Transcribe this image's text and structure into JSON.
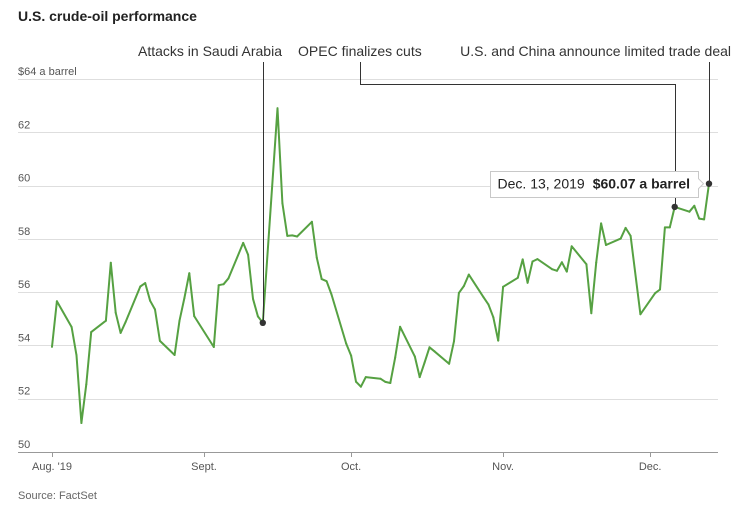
{
  "chart_data": {
    "type": "line",
    "title": "U.S. crude-oil performance",
    "x": [
      0,
      1,
      4,
      5,
      6,
      7,
      8,
      11,
      12,
      13,
      14,
      15,
      18,
      19,
      20,
      21,
      22,
      25,
      26,
      27,
      28,
      29,
      33,
      34,
      35,
      36,
      39,
      40,
      41,
      42,
      43,
      46,
      47,
      48,
      49,
      50,
      53,
      54,
      55,
      56,
      57,
      60,
      61,
      62,
      63,
      64,
      67,
      68,
      69,
      70,
      71,
      74,
      75,
      76,
      77,
      78,
      81,
      82,
      83,
      84,
      85,
      88,
      89,
      90,
      91,
      92,
      95,
      96,
      97,
      98,
      99,
      102,
      103,
      104,
      105,
      106,
      109,
      110,
      111,
      112,
      113,
      116,
      117,
      118,
      120,
      123,
      124,
      125,
      126,
      127,
      130,
      131,
      132,
      133,
      134
    ],
    "values": [
      53.95,
      55.66,
      54.69,
      53.63,
      51.09,
      52.54,
      54.5,
      54.93,
      57.1,
      55.23,
      54.47,
      54.87,
      56.21,
      56.34,
      55.68,
      55.35,
      54.17,
      53.64,
      54.93,
      55.78,
      56.71,
      55.1,
      53.94,
      56.26,
      56.3,
      56.52,
      57.85,
      57.4,
      55.75,
      55.09,
      54.85,
      62.9,
      59.34,
      58.11,
      58.13,
      58.09,
      58.64,
      57.29,
      56.49,
      56.41,
      55.91,
      54.07,
      53.62,
      52.64,
      52.45,
      52.81,
      52.75,
      52.63,
      52.59,
      53.55,
      54.7,
      53.59,
      52.81,
      53.36,
      53.93,
      53.78,
      53.31,
      54.16,
      55.97,
      56.23,
      56.66,
      55.81,
      55.54,
      55.06,
      54.18,
      56.2,
      56.54,
      57.23,
      56.35,
      57.15,
      57.24,
      56.86,
      56.8,
      57.12,
      56.77,
      57.72,
      57.05,
      55.21,
      57.11,
      58.58,
      57.77,
      58.01,
      58.41,
      58.11,
      55.17,
      55.96,
      56.1,
      58.43,
      58.43,
      59.2,
      59.02,
      59.24,
      58.76,
      58.73,
      60.07
    ],
    "xlim": [
      0,
      134
    ],
    "ylim": [
      50,
      64
    ],
    "x_ticks": [
      {
        "x": 0,
        "label": "Aug. '19"
      },
      {
        "x": 31,
        "label": "Sept."
      },
      {
        "x": 61,
        "label": "Oct."
      },
      {
        "x": 92,
        "label": "Nov."
      },
      {
        "x": 122,
        "label": "Dec."
      }
    ],
    "y_ticks": [
      {
        "value": 50,
        "label": "50"
      },
      {
        "value": 52,
        "label": "52"
      },
      {
        "value": 54,
        "label": "54"
      },
      {
        "value": 56,
        "label": "56"
      },
      {
        "value": 58,
        "label": "58"
      },
      {
        "value": 60,
        "label": "60"
      },
      {
        "value": 62,
        "label": "62"
      },
      {
        "value": 64,
        "label": "$64 a barrel"
      }
    ],
    "grid": true,
    "annotations": [
      {
        "text": "Attacks in Saudi Arabia",
        "x": 43,
        "value": 54.85
      },
      {
        "text": "OPEC finalizes cuts",
        "x": 127,
        "value": 59.2
      },
      {
        "text": "U.S. and China announce limited trade deal",
        "x": 134,
        "value": 60.07
      }
    ],
    "tooltip": {
      "date_text": "Dec. 13, 2019",
      "value_text": "$60.07 a barrel",
      "x": 134,
      "value": 60.07
    },
    "line_color": "#56a142"
  },
  "source": "Source: FactSet"
}
